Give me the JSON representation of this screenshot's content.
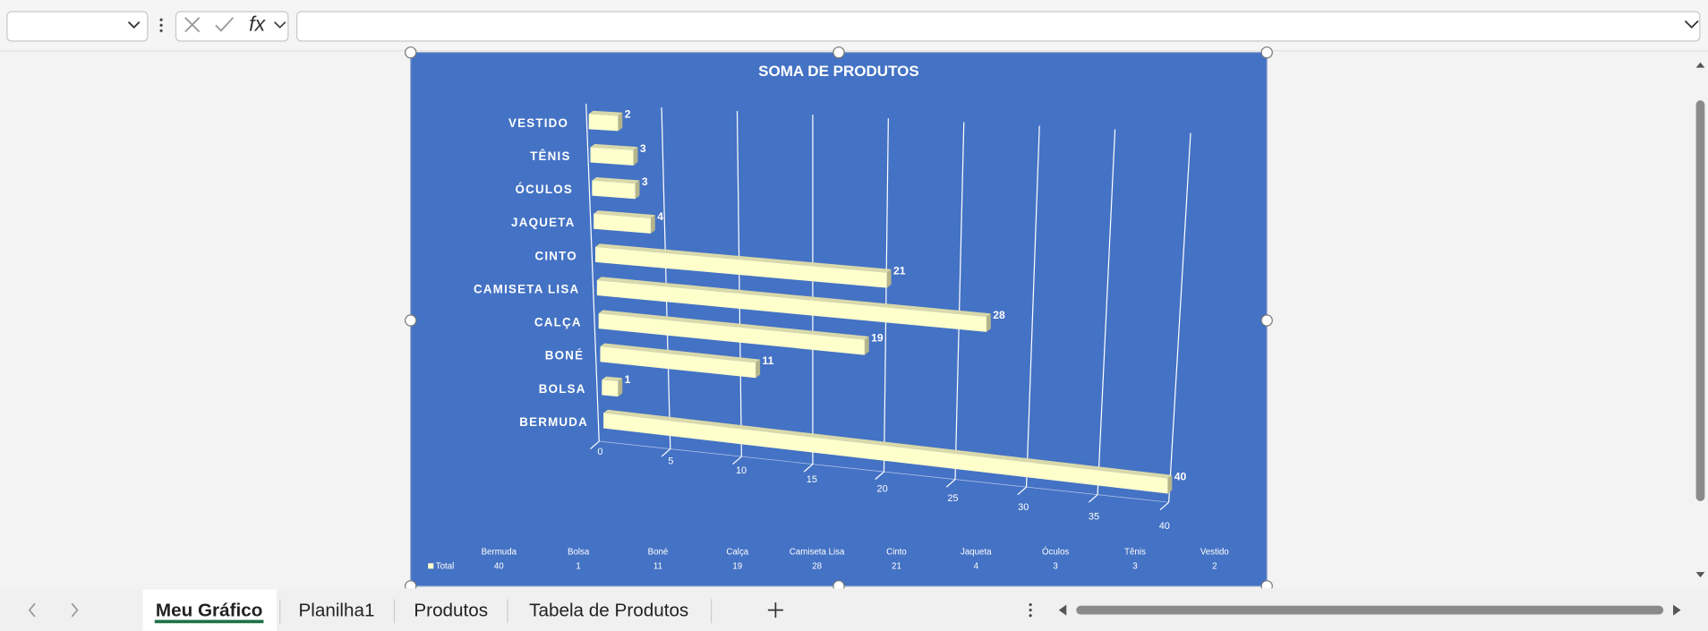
{
  "ui": {
    "function_icon": "fx",
    "sheet_tabs": [
      "Meu Gráfico",
      "Planilha1",
      "Produtos",
      "Tabela de Produtos"
    ]
  },
  "chart_data": {
    "type": "bar",
    "orientation": "horizontal",
    "title": "SOMA DE PRODUTOS",
    "categories": [
      "BERMUDA",
      "BOLSA",
      "BONÉ",
      "CALÇA",
      "CAMISETA LISA",
      "CINTO",
      "JAQUETA",
      "ÓCULOS",
      "TÊNIS",
      "VESTIDO"
    ],
    "series": [
      {
        "name": "Total",
        "color": "#ffffcc",
        "values": [
          40,
          1,
          11,
          19,
          28,
          21,
          4,
          3,
          3,
          2
        ]
      }
    ],
    "xlim": [
      0,
      40
    ],
    "xticks": [
      0,
      5,
      10,
      15,
      20,
      25,
      30,
      35,
      40
    ],
    "grid": true,
    "data_table": {
      "categories": [
        "Bermuda",
        "Bolsa",
        "Boné",
        "Calça",
        "Camiseta Lisa",
        "Cinto",
        "Jaqueta",
        "Óculos",
        "Tênis",
        "Vestido"
      ]
    }
  }
}
